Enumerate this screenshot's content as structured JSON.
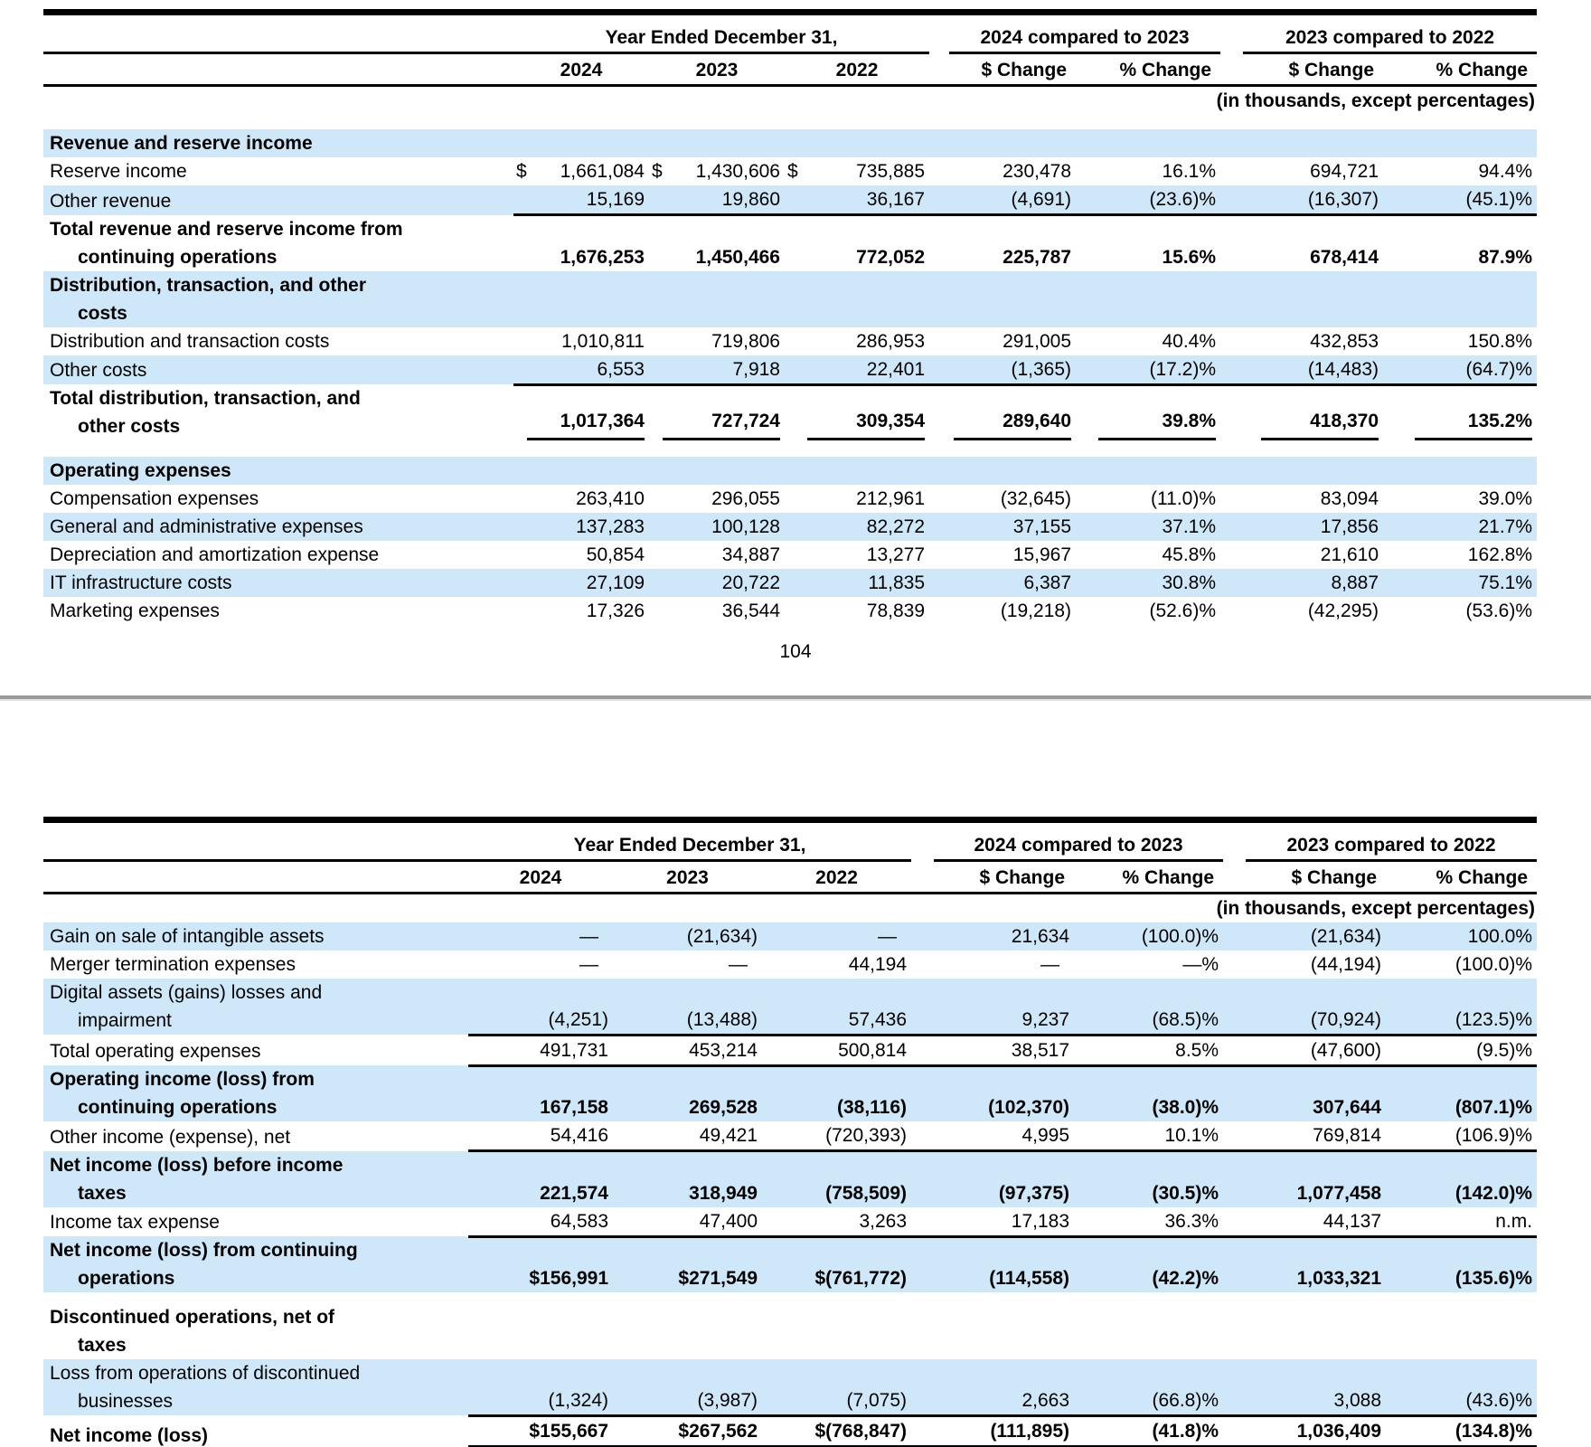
{
  "page": {
    "page_number": "104"
  },
  "header": {
    "year_ended_label": "Year Ended December 31,",
    "col_years": [
      "2024",
      "2023",
      "2022"
    ],
    "cmp1_label": "2024 compared to 2023",
    "cmp2_label": "2023 compared to 2022",
    "dchange_label": "$ Change",
    "pchange_label": "% Change",
    "units_note": "(in thousands, except percentages)"
  },
  "table1": {
    "rows": [
      {
        "lines": [
          "Revenue and reserve income"
        ],
        "bold": true,
        "shaded": true,
        "gap_before": true,
        "values": null
      },
      {
        "lines": [
          "Reserve income"
        ],
        "values": [
          "$ 1,661,084",
          "$ 1,430,606",
          "$ 735,885",
          "230,478",
          "16.1%",
          "694,721",
          "94.4%"
        ]
      },
      {
        "lines": [
          "Other revenue"
        ],
        "shaded": true,
        "rule": "line",
        "values": [
          "15,169",
          "19,860",
          "36,167",
          "(4,691)",
          "(23.6)%",
          "(16,307)",
          "(45.1)%"
        ]
      },
      {
        "lines": [
          "Total revenue and reserve income from",
          "continuing operations"
        ],
        "bold": true,
        "values": [
          "1,676,253",
          "1,450,466",
          "772,052",
          "225,787",
          "15.6%",
          "678,414",
          "87.9%"
        ]
      },
      {
        "lines": [
          "Distribution, transaction, and other",
          "costs"
        ],
        "bold": true,
        "shaded": true,
        "values": null
      },
      {
        "lines": [
          "Distribution and transaction costs"
        ],
        "values": [
          "1,010,811",
          "719,806",
          "286,953",
          "291,005",
          "40.4%",
          "432,853",
          "150.8%"
        ]
      },
      {
        "lines": [
          "Other costs"
        ],
        "shaded": true,
        "rule": "line",
        "values": [
          "6,553",
          "7,918",
          "22,401",
          "(1,365)",
          "(17.2)%",
          "(14,483)",
          "(64.7)%"
        ]
      },
      {
        "lines": [
          "Total distribution, transaction, and",
          "other costs"
        ],
        "bold": true,
        "rule": "seg",
        "values": [
          "1,017,364",
          "727,724",
          "309,354",
          "289,640",
          "39.8%",
          "418,370",
          "135.2%"
        ]
      },
      {
        "lines": [
          "Operating expenses"
        ],
        "bold": true,
        "shaded": true,
        "gap_before": true,
        "values": null
      },
      {
        "lines": [
          "Compensation expenses"
        ],
        "values": [
          "263,410",
          "296,055",
          "212,961",
          "(32,645)",
          "(11.0)%",
          "83,094",
          "39.0%"
        ]
      },
      {
        "lines": [
          "General and administrative expenses"
        ],
        "shaded": true,
        "values": [
          "137,283",
          "100,128",
          "82,272",
          "37,155",
          "37.1%",
          "17,856",
          "21.7%"
        ]
      },
      {
        "lines": [
          "Depreciation and amortization expense"
        ],
        "values": [
          "50,854",
          "34,887",
          "13,277",
          "15,967",
          "45.8%",
          "21,610",
          "162.8%"
        ]
      },
      {
        "lines": [
          "IT infrastructure costs"
        ],
        "shaded": true,
        "values": [
          "27,109",
          "20,722",
          "11,835",
          "6,387",
          "30.8%",
          "8,887",
          "75.1%"
        ]
      },
      {
        "lines": [
          "Marketing expenses"
        ],
        "values": [
          "17,326",
          "36,544",
          "78,839",
          "(19,218)",
          "(52.6)%",
          "(42,295)",
          "(53.6)%"
        ]
      }
    ]
  },
  "table2": {
    "rows": [
      {
        "lines": [
          "Gain on sale of intangible assets"
        ],
        "shaded": true,
        "values": [
          "—",
          "(21,634)",
          "—",
          "21,634",
          "(100.0)%",
          "(21,634)",
          "100.0%"
        ]
      },
      {
        "lines": [
          "Merger termination expenses"
        ],
        "values": [
          "—",
          "—",
          "44,194",
          "—",
          "—%",
          "(44,194)",
          "(100.0)%"
        ]
      },
      {
        "lines": [
          "Digital assets (gains) losses and",
          "impairment"
        ],
        "shaded": true,
        "rule": "line",
        "values": [
          "(4,251)",
          "(13,488)",
          "57,436",
          "9,237",
          "(68.5)%",
          "(70,924)",
          "(123.5)%"
        ]
      },
      {
        "lines": [
          "Total operating expenses"
        ],
        "rule": "line",
        "values": [
          "491,731",
          "453,214",
          "500,814",
          "38,517",
          "8.5%",
          "(47,600)",
          "(9.5)%"
        ]
      },
      {
        "lines": [
          "Operating income (loss) from",
          "continuing operations"
        ],
        "bold": true,
        "shaded": true,
        "values": [
          "167,158",
          "269,528",
          "(38,116)",
          "(102,370)",
          "(38.0)%",
          "307,644",
          "(807.1)%"
        ]
      },
      {
        "lines": [
          "Other income (expense), net"
        ],
        "rule": "line",
        "values": [
          "54,416",
          "49,421",
          "(720,393)",
          "4,995",
          "10.1%",
          "769,814",
          "(106.9)%"
        ]
      },
      {
        "lines": [
          "Net income (loss) before income",
          "taxes"
        ],
        "bold": true,
        "shaded": true,
        "values": [
          "221,574",
          "318,949",
          "(758,509)",
          "(97,375)",
          "(30.5)%",
          "1,077,458",
          "(142.0)%"
        ]
      },
      {
        "lines": [
          "Income tax expense"
        ],
        "rule": "line",
        "values": [
          "64,583",
          "47,400",
          "3,263",
          "17,183",
          "36.3%",
          "44,137",
          "n.m."
        ]
      },
      {
        "lines": [
          "Net income (loss) from continuing",
          "operations"
        ],
        "bold": true,
        "shaded": true,
        "values": [
          "$156,991",
          "$271,549",
          "$(761,772)",
          "(114,558)",
          "(42.2)%",
          "1,033,321",
          "(135.6)%"
        ]
      },
      {
        "lines": [
          "Discontinued operations, net of",
          "taxes"
        ],
        "bold": true,
        "gap_before": true,
        "values": null
      },
      {
        "lines": [
          "Loss from operations of discontinued",
          "businesses"
        ],
        "shaded": true,
        "rule": "line",
        "values": [
          "(1,324)",
          "(3,987)",
          "(7,075)",
          "2,663",
          "(66.8)%",
          "3,088",
          "(43.6)%"
        ]
      },
      {
        "lines": [
          "Net income (loss)"
        ],
        "bold": true,
        "rule": "double",
        "values": [
          "$155,667",
          "$267,562",
          "$(768,847)",
          "(111,895)",
          "(41.8)%",
          "1,036,409",
          "(134.8)%"
        ]
      }
    ]
  }
}
